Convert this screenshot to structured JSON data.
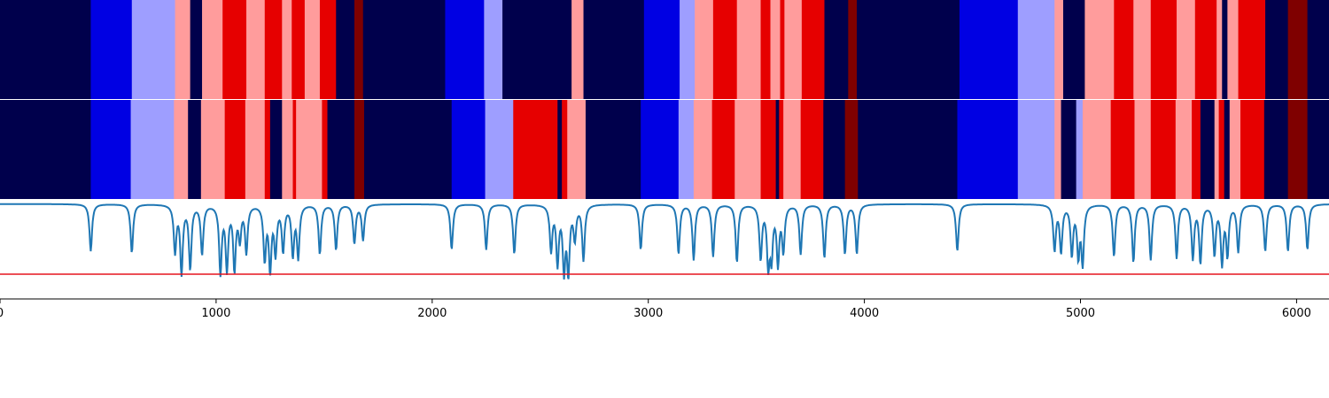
{
  "chart_data": [
    {
      "type": "heatmap",
      "title": "",
      "xlim": [
        0,
        6150
      ],
      "segments": [
        {
          "start": 0,
          "end": 420,
          "color": "#00004c"
        },
        {
          "start": 420,
          "end": 610,
          "color": "#0000e3"
        },
        {
          "start": 610,
          "end": 810,
          "color": "#9e9eff"
        },
        {
          "start": 810,
          "end": 880,
          "color": "#ff9c9c"
        },
        {
          "start": 880,
          "end": 935,
          "color": "#00004c"
        },
        {
          "start": 935,
          "end": 1030,
          "color": "#ff9c9c"
        },
        {
          "start": 1030,
          "end": 1140,
          "color": "#e60000"
        },
        {
          "start": 1140,
          "end": 1225,
          "color": "#ff9c9c"
        },
        {
          "start": 1225,
          "end": 1305,
          "color": "#e60000"
        },
        {
          "start": 1305,
          "end": 1350,
          "color": "#ff9c9c"
        },
        {
          "start": 1350,
          "end": 1410,
          "color": "#e60000"
        },
        {
          "start": 1410,
          "end": 1480,
          "color": "#ff9c9c"
        },
        {
          "start": 1480,
          "end": 1555,
          "color": "#e60000"
        },
        {
          "start": 1555,
          "end": 1640,
          "color": "#00004c"
        },
        {
          "start": 1640,
          "end": 1680,
          "color": "#7f0000"
        },
        {
          "start": 1680,
          "end": 2060,
          "color": "#00004c"
        },
        {
          "start": 2060,
          "end": 2240,
          "color": "#0000e3"
        },
        {
          "start": 2240,
          "end": 2325,
          "color": "#9e9eff"
        },
        {
          "start": 2325,
          "end": 2645,
          "color": "#00004c"
        },
        {
          "start": 2645,
          "end": 2700,
          "color": "#ff9c9c"
        },
        {
          "start": 2700,
          "end": 2980,
          "color": "#00004c"
        },
        {
          "start": 2980,
          "end": 3145,
          "color": "#0000e3"
        },
        {
          "start": 3145,
          "end": 3215,
          "color": "#9e9eff"
        },
        {
          "start": 3215,
          "end": 3300,
          "color": "#ff9c9c"
        },
        {
          "start": 3300,
          "end": 3410,
          "color": "#e60000"
        },
        {
          "start": 3410,
          "end": 3520,
          "color": "#ff9c9c"
        },
        {
          "start": 3520,
          "end": 3565,
          "color": "#e60000"
        },
        {
          "start": 3565,
          "end": 3610,
          "color": "#ff9c9c"
        },
        {
          "start": 3610,
          "end": 3630,
          "color": "#e60000"
        },
        {
          "start": 3630,
          "end": 3710,
          "color": "#ff9c9c"
        },
        {
          "start": 3710,
          "end": 3815,
          "color": "#e60000"
        },
        {
          "start": 3815,
          "end": 3925,
          "color": "#00004c"
        },
        {
          "start": 3925,
          "end": 3965,
          "color": "#7f0000"
        },
        {
          "start": 3965,
          "end": 4440,
          "color": "#00004c"
        },
        {
          "start": 4440,
          "end": 4710,
          "color": "#0000e3"
        },
        {
          "start": 4710,
          "end": 4880,
          "color": "#9e9eff"
        },
        {
          "start": 4880,
          "end": 4920,
          "color": "#ff9c9c"
        },
        {
          "start": 4920,
          "end": 5020,
          "color": "#00004c"
        },
        {
          "start": 5020,
          "end": 5155,
          "color": "#ff9c9c"
        },
        {
          "start": 5155,
          "end": 5245,
          "color": "#e60000"
        },
        {
          "start": 5245,
          "end": 5325,
          "color": "#ff9c9c"
        },
        {
          "start": 5325,
          "end": 5445,
          "color": "#e60000"
        },
        {
          "start": 5445,
          "end": 5530,
          "color": "#ff9c9c"
        },
        {
          "start": 5530,
          "end": 5630,
          "color": "#e60000"
        },
        {
          "start": 5630,
          "end": 5655,
          "color": "#ff9c9c"
        },
        {
          "start": 5655,
          "end": 5680,
          "color": "#00004c"
        },
        {
          "start": 5680,
          "end": 5730,
          "color": "#ff9c9c"
        },
        {
          "start": 5730,
          "end": 5855,
          "color": "#e60000"
        },
        {
          "start": 5855,
          "end": 5960,
          "color": "#00004c"
        },
        {
          "start": 5960,
          "end": 6050,
          "color": "#7f0000"
        },
        {
          "start": 6050,
          "end": 6150,
          "color": "#00004c"
        }
      ]
    },
    {
      "type": "heatmap",
      "title": "",
      "xlim": [
        0,
        6150
      ],
      "segments": [
        {
          "start": 0,
          "end": 420,
          "color": "#00004c"
        },
        {
          "start": 420,
          "end": 605,
          "color": "#0000e3"
        },
        {
          "start": 605,
          "end": 805,
          "color": "#9e9eff"
        },
        {
          "start": 805,
          "end": 870,
          "color": "#ff9c9c"
        },
        {
          "start": 870,
          "end": 930,
          "color": "#00004c"
        },
        {
          "start": 930,
          "end": 1040,
          "color": "#ff9c9c"
        },
        {
          "start": 1040,
          "end": 1135,
          "color": "#e60000"
        },
        {
          "start": 1135,
          "end": 1225,
          "color": "#ff9c9c"
        },
        {
          "start": 1225,
          "end": 1250,
          "color": "#e60000"
        },
        {
          "start": 1250,
          "end": 1305,
          "color": "#00004c"
        },
        {
          "start": 1305,
          "end": 1355,
          "color": "#ff9c9c"
        },
        {
          "start": 1355,
          "end": 1370,
          "color": "#e60000"
        },
        {
          "start": 1370,
          "end": 1490,
          "color": "#ff9c9c"
        },
        {
          "start": 1490,
          "end": 1515,
          "color": "#e60000"
        },
        {
          "start": 1515,
          "end": 1640,
          "color": "#00004c"
        },
        {
          "start": 1640,
          "end": 1685,
          "color": "#7f0000"
        },
        {
          "start": 1685,
          "end": 2090,
          "color": "#00004c"
        },
        {
          "start": 2090,
          "end": 2245,
          "color": "#0000e3"
        },
        {
          "start": 2245,
          "end": 2375,
          "color": "#9e9eff"
        },
        {
          "start": 2375,
          "end": 2580,
          "color": "#e60000"
        },
        {
          "start": 2580,
          "end": 2600,
          "color": "#00004c"
        },
        {
          "start": 2600,
          "end": 2625,
          "color": "#e60000"
        },
        {
          "start": 2625,
          "end": 2710,
          "color": "#ff9c9c"
        },
        {
          "start": 2710,
          "end": 2965,
          "color": "#00004c"
        },
        {
          "start": 2965,
          "end": 3140,
          "color": "#0000e3"
        },
        {
          "start": 3140,
          "end": 3210,
          "color": "#9e9eff"
        },
        {
          "start": 3210,
          "end": 3295,
          "color": "#ff9c9c"
        },
        {
          "start": 3295,
          "end": 3400,
          "color": "#e60000"
        },
        {
          "start": 3400,
          "end": 3520,
          "color": "#ff9c9c"
        },
        {
          "start": 3520,
          "end": 3590,
          "color": "#e60000"
        },
        {
          "start": 3590,
          "end": 3605,
          "color": "#00004c"
        },
        {
          "start": 3605,
          "end": 3625,
          "color": "#e60000"
        },
        {
          "start": 3625,
          "end": 3705,
          "color": "#ff9c9c"
        },
        {
          "start": 3705,
          "end": 3810,
          "color": "#e60000"
        },
        {
          "start": 3810,
          "end": 3910,
          "color": "#00004c"
        },
        {
          "start": 3910,
          "end": 3970,
          "color": "#7f0000"
        },
        {
          "start": 3970,
          "end": 4430,
          "color": "#00004c"
        },
        {
          "start": 4430,
          "end": 4710,
          "color": "#0000e3"
        },
        {
          "start": 4710,
          "end": 4880,
          "color": "#9e9eff"
        },
        {
          "start": 4880,
          "end": 4910,
          "color": "#ff9c9c"
        },
        {
          "start": 4910,
          "end": 4980,
          "color": "#00004c"
        },
        {
          "start": 4980,
          "end": 5010,
          "color": "#9e9eff"
        },
        {
          "start": 5010,
          "end": 5140,
          "color": "#ff9c9c"
        },
        {
          "start": 5140,
          "end": 5250,
          "color": "#e60000"
        },
        {
          "start": 5250,
          "end": 5325,
          "color": "#ff9c9c"
        },
        {
          "start": 5325,
          "end": 5440,
          "color": "#e60000"
        },
        {
          "start": 5440,
          "end": 5515,
          "color": "#ff9c9c"
        },
        {
          "start": 5515,
          "end": 5555,
          "color": "#e60000"
        },
        {
          "start": 5555,
          "end": 5620,
          "color": "#00004c"
        },
        {
          "start": 5620,
          "end": 5640,
          "color": "#ff9c9c"
        },
        {
          "start": 5640,
          "end": 5665,
          "color": "#e60000"
        },
        {
          "start": 5665,
          "end": 5690,
          "color": "#00004c"
        },
        {
          "start": 5690,
          "end": 5740,
          "color": "#ff9c9c"
        },
        {
          "start": 5740,
          "end": 5850,
          "color": "#e60000"
        },
        {
          "start": 5850,
          "end": 5960,
          "color": "#00004c"
        },
        {
          "start": 5960,
          "end": 6050,
          "color": "#7f0000"
        },
        {
          "start": 6050,
          "end": 6150,
          "color": "#00004c"
        }
      ]
    },
    {
      "type": "line",
      "title": "",
      "xlabel": "",
      "ylabel": "",
      "xlim": [
        0,
        6150
      ],
      "ylim": [
        0,
        1.2
      ],
      "xticks": [
        0,
        1000,
        2000,
        3000,
        4000,
        5000,
        6000
      ],
      "xtick_labels": [
        "0",
        "1000",
        "2000",
        "3000",
        "4000",
        "5000",
        "6000"
      ],
      "baseline": 1.15,
      "threshold": {
        "value": 0.3,
        "color": "#e6141e"
      },
      "line_color": "#1f77b4",
      "dips": [
        [
          420,
          0.58
        ],
        [
          610,
          0.56
        ],
        [
          810,
          0.58
        ],
        [
          840,
          0.33
        ],
        [
          880,
          0.38
        ],
        [
          935,
          0.55
        ],
        [
          1020,
          0.33
        ],
        [
          1050,
          0.38
        ],
        [
          1085,
          0.38
        ],
        [
          1110,
          0.75
        ],
        [
          1140,
          0.58
        ],
        [
          1225,
          0.5
        ],
        [
          1250,
          0.38
        ],
        [
          1275,
          0.58
        ],
        [
          1310,
          0.6
        ],
        [
          1355,
          0.55
        ],
        [
          1380,
          0.52
        ],
        [
          1480,
          0.55
        ],
        [
          1555,
          0.6
        ],
        [
          1640,
          0.68
        ],
        [
          1680,
          0.72
        ],
        [
          2090,
          0.6
        ],
        [
          2250,
          0.6
        ],
        [
          2380,
          0.55
        ],
        [
          2550,
          0.6
        ],
        [
          2580,
          0.45
        ],
        [
          2610,
          0.38
        ],
        [
          2630,
          0.35
        ],
        [
          2660,
          0.75
        ],
        [
          2700,
          0.48
        ],
        [
          2965,
          0.6
        ],
        [
          3140,
          0.55
        ],
        [
          3210,
          0.48
        ],
        [
          3300,
          0.52
        ],
        [
          3410,
          0.45
        ],
        [
          3520,
          0.5
        ],
        [
          3555,
          0.45
        ],
        [
          3570,
          0.55
        ],
        [
          3600,
          0.45
        ],
        [
          3625,
          0.6
        ],
        [
          3705,
          0.55
        ],
        [
          3815,
          0.5
        ],
        [
          3910,
          0.55
        ],
        [
          3965,
          0.55
        ],
        [
          4430,
          0.58
        ],
        [
          4880,
          0.6
        ],
        [
          4910,
          0.58
        ],
        [
          4960,
          0.55
        ],
        [
          4990,
          0.55
        ],
        [
          5010,
          0.45
        ],
        [
          5155,
          0.52
        ],
        [
          5245,
          0.45
        ],
        [
          5325,
          0.48
        ],
        [
          5445,
          0.5
        ],
        [
          5520,
          0.5
        ],
        [
          5555,
          0.45
        ],
        [
          5620,
          0.55
        ],
        [
          5655,
          0.45
        ],
        [
          5680,
          0.55
        ],
        [
          5730,
          0.58
        ],
        [
          5855,
          0.58
        ],
        [
          5960,
          0.58
        ],
        [
          6050,
          0.6
        ]
      ]
    }
  ]
}
